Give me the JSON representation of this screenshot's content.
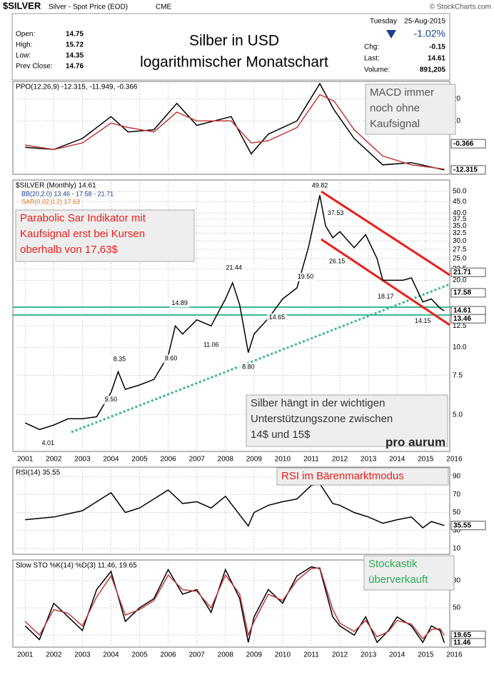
{
  "header": {
    "symbol": "$SILVER",
    "name": "Silver - Spot Price (EOD)",
    "exchange": "CME",
    "copyright": "© StockCharts.com"
  },
  "quote": {
    "title": [
      "Silber in USD",
      "logarithmischer Monatschart"
    ],
    "left": [
      {
        "label": "Open:",
        "value": 14.75
      },
      {
        "label": "High:",
        "value": 15.72
      },
      {
        "label": "Low:",
        "value": 14.35
      },
      {
        "label": "Prev Close:",
        "value": 14.76
      }
    ],
    "day": "Tuesday",
    "date": "25-Aug-2015",
    "change_pct": {
      "value": -1.02,
      "label": "-1.02%"
    },
    "right": [
      {
        "label": "Chg:",
        "value": -0.15
      },
      {
        "label": "Last:",
        "value": 14.61
      },
      {
        "label": "Volume:",
        "value": {
          "value": 891205,
          "label": "891,205"
        }
      }
    ]
  },
  "chart_data": [
    {
      "type": "line",
      "title": "$SILVER (Monthly) 14.61",
      "legend": [
        "BB(20,2.0) 13.46 - 17.58 - 21.71",
        "SAR(0.02,0.2) 17.63"
      ],
      "log": true,
      "grid": true,
      "xlim": [
        2000.57,
        2015.84
      ],
      "ylim": [
        3.43,
        56.2
      ],
      "xticks": [
        2001,
        2002,
        2003,
        2004,
        2005,
        2006,
        2007,
        2008,
        2009,
        2010,
        2011,
        2012,
        2013,
        2014,
        2015,
        2016
      ],
      "yticks": [
        {
          "value": 5,
          "label": "5.0"
        },
        7.5,
        {
          "value": 10,
          "label": "10.0"
        },
        12.5,
        {
          "value": 20,
          "label": "20.0"
        },
        22.5,
        {
          "value": 25,
          "label": "25.0"
        },
        27.5,
        {
          "value": 30,
          "label": "30.0"
        },
        32.5,
        {
          "value": 35,
          "label": "35.0"
        },
        37.5,
        {
          "value": 40,
          "label": "40.0"
        },
        {
          "value": 45,
          "label": "45.0"
        },
        {
          "value": 50,
          "label": "50.0"
        }
      ],
      "x": [
        2001.0,
        2001.5,
        2002.0,
        2002.5,
        2003.0,
        2003.5,
        2004.0,
        2004.25,
        2004.5,
        2005.0,
        2005.5,
        2006.0,
        2006.25,
        2006.5,
        2007.0,
        2007.5,
        2008.0,
        2008.25,
        2008.5,
        2008.8,
        2009.0,
        2009.5,
        2010.0,
        2010.5,
        2010.9,
        2011.3,
        2011.5,
        2011.75,
        2012.0,
        2012.5,
        2012.9,
        2013.3,
        2013.5,
        2013.9,
        2014.2,
        2014.5,
        2014.9,
        2015.2,
        2015.5,
        2015.65
      ],
      "series": [
        {
          "name": "$SILVER",
          "color": "#000000",
          "values": [
            4.6,
            4.3,
            4.5,
            4.8,
            4.8,
            4.9,
            6.3,
            7.8,
            6.5,
            6.8,
            7.2,
            9.2,
            12.5,
            11.5,
            13.3,
            12.5,
            16.5,
            19.5,
            15.5,
            9.5,
            11.5,
            13.5,
            16.5,
            18.5,
            28,
            48,
            35,
            31,
            33,
            28,
            32,
            25,
            20,
            20,
            20,
            20.5,
            16,
            16.5,
            15,
            14.61
          ]
        }
      ],
      "peaks": {
        "x": [
          2011.3,
          2011.85,
          2011.9,
          2008.3,
          2010.8,
          2013.6,
          2006.4,
          2009.8,
          2014.9,
          2007.5,
          2006.1,
          2004.3,
          2008.8,
          2004.0,
          2001.8
        ],
        "values": [
          49.82,
          37.53,
          26.15,
          21.44,
          19.5,
          18.17,
          14.89,
          14.65,
          14.15,
          11.06,
          9.6,
          8.35,
          8.8,
          5.5,
          4.01
        ],
        "value_labels": [
          "49.82",
          "37.53",
          "26.15",
          "21.44",
          "19.50",
          "18.17",
          "14.89",
          "14.65",
          "14.15",
          "11.06",
          "9.60",
          "8.35",
          "8.80",
          "5.50",
          "4.01"
        ]
      },
      "markers": [
        21.71,
        17.58,
        14.61,
        13.46
      ],
      "annotations": [
        {
          "lines": [
            "Parabolic Sar Indikator mit",
            "Kaufsignal erst bei Kursen",
            "oberhalb von 17,63$"
          ],
          "color": "#e8201c"
        },
        {
          "lines": [
            "Silber hängt in der wichtigen",
            "Unterstützungszone zwischen",
            "14$ und 15$"
          ],
          "color": "#333333"
        }
      ],
      "logo": "pro aurum"
    },
    {
      "type": "line",
      "title": "PPO(12,26,9) -12.315, -11.949, -0.366",
      "grid": true,
      "xlim": [
        2000.57,
        2015.84
      ],
      "ylim": [
        -14.3,
        28
      ],
      "yticks": [
        10,
        20
      ],
      "x": [
        2001,
        2002,
        2003,
        2004,
        2004.6,
        2005.5,
        2006.3,
        2007,
        2008.2,
        2008.9,
        2009.5,
        2010.5,
        2011.3,
        2011.8,
        2012.5,
        2013.5,
        2014.5,
        2015.65
      ],
      "series": [
        {
          "name": "PPO",
          "color": "#000000",
          "values": [
            -2,
            -3,
            2,
            12,
            5,
            6,
            18,
            8,
            12,
            -5,
            4,
            10,
            27,
            15,
            2,
            -10,
            -9,
            -12.315
          ]
        },
        {
          "name": "Signal",
          "color": "#c2393b",
          "values": [
            -1,
            -3,
            0,
            9,
            7,
            5,
            14,
            10,
            10,
            0,
            1,
            7,
            22,
            19,
            6,
            -6,
            -10,
            -11.949
          ]
        }
      ],
      "markers": [
        -0.366,
        -12.315
      ],
      "annotations": [
        {
          "lines": [
            "MACD immer",
            "noch ohne",
            "Kaufsignal"
          ],
          "color": "#555555"
        }
      ]
    },
    {
      "type": "line",
      "title": "RSI(14) 35.55",
      "grid": true,
      "xlim": [
        2000.57,
        2015.84
      ],
      "ylim": [
        3.6,
        100.4
      ],
      "yticks": [
        10,
        30,
        50,
        70,
        90
      ],
      "x": [
        2001,
        2002,
        2003,
        2004,
        2004.5,
        2005,
        2006,
        2006.5,
        2007,
        2007.5,
        2008,
        2008.8,
        2009,
        2009.5,
        2010,
        2010.5,
        2011,
        2011.3,
        2011.75,
        2012,
        2012.5,
        2013,
        2013.5,
        2014,
        2014.5,
        2014.9,
        2015.2,
        2015.65
      ],
      "series": [
        {
          "name": "RSI",
          "color": "#000000",
          "values": [
            42,
            45,
            52,
            72,
            50,
            55,
            75,
            60,
            62,
            55,
            68,
            35,
            50,
            58,
            62,
            65,
            80,
            82,
            60,
            58,
            50,
            45,
            38,
            42,
            45,
            33,
            40,
            35.55
          ]
        }
      ],
      "markers": [
        35.55
      ],
      "annotations": [
        {
          "lines": [
            "RSI im Bärenmarktmodus"
          ],
          "color": "#e8201c"
        }
      ]
    },
    {
      "type": "line",
      "title": "Slow STO %K(14) %D(3) 11.46, 19.65",
      "grid": true,
      "xlim": [
        2000.57,
        2015.84
      ],
      "ylim": [
        6.7,
        102.5
      ],
      "yticks": [
        20,
        50,
        80
      ],
      "xticks": [
        2001,
        2002,
        2003,
        2004,
        2005,
        2006,
        2007,
        2008,
        2009,
        2010,
        2011,
        2012,
        2013,
        2014,
        2015,
        2016
      ],
      "x": [
        2001,
        2001.5,
        2002,
        2002.5,
        2003,
        2003.5,
        2004,
        2004.5,
        2005,
        2005.5,
        2006,
        2006.5,
        2007,
        2007.5,
        2008,
        2008.5,
        2008.8,
        2009,
        2009.5,
        2010,
        2010.5,
        2011,
        2011.3,
        2011.75,
        2012,
        2012.5,
        2012.9,
        2013.3,
        2013.7,
        2014,
        2014.5,
        2014.9,
        2015.2,
        2015.5,
        2015.65
      ],
      "series": [
        {
          "name": "%K",
          "color": "#000000",
          "values": [
            30,
            15,
            55,
            40,
            25,
            70,
            90,
            35,
            50,
            60,
            92,
            65,
            70,
            45,
            92,
            60,
            12,
            40,
            70,
            55,
            85,
            95,
            93,
            40,
            30,
            20,
            40,
            12,
            25,
            40,
            30,
            12,
            30,
            25,
            11.46
          ]
        },
        {
          "name": "%D",
          "color": "#c2393b",
          "values": [
            35,
            20,
            48,
            44,
            30,
            62,
            85,
            42,
            48,
            58,
            86,
            70,
            68,
            50,
            86,
            65,
            20,
            35,
            65,
            58,
            80,
            93,
            94,
            48,
            33,
            24,
            36,
            18,
            24,
            36,
            32,
            16,
            26,
            27,
            19.65
          ]
        }
      ],
      "markers": [
        19.65,
        11.46
      ],
      "annotations": [
        {
          "lines": [
            "Stockastik",
            "überverkauft"
          ],
          "color": "#2eaa55"
        }
      ]
    }
  ]
}
